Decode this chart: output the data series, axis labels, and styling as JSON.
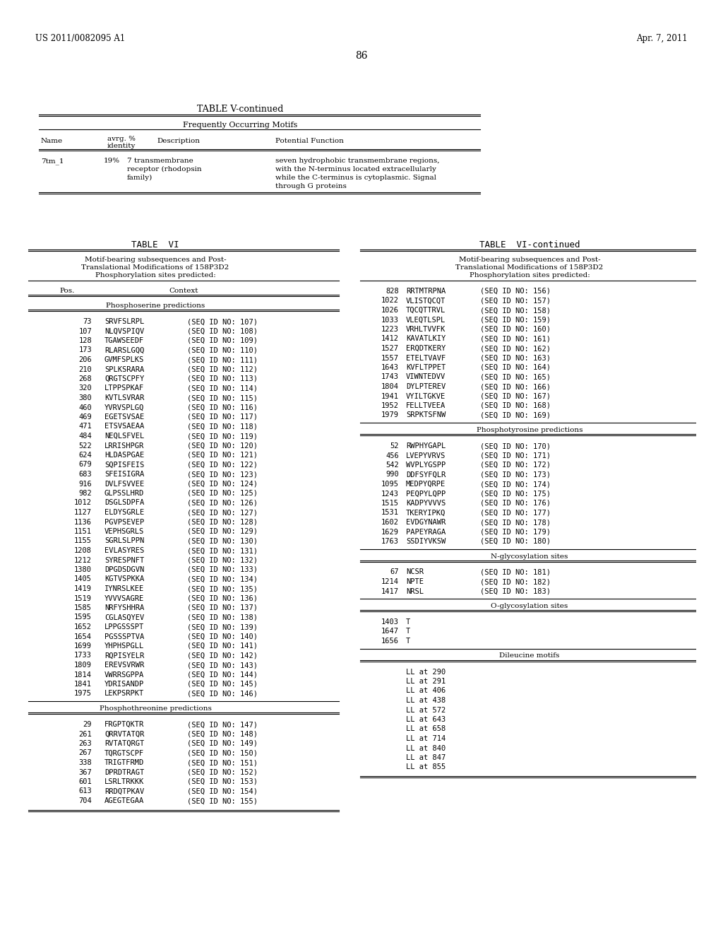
{
  "header_left": "US 2011/0082095 A1",
  "header_right": "Apr. 7, 2011",
  "page_number": "86",
  "table_v_title": "TABLE V-continued",
  "table_v_subtitle": "Frequently Occurring Motifs",
  "phosphoserine_label": "Phosphoserine predictions",
  "phosphoserine_data": [
    [
      73,
      "SRVFSLRPL",
      107
    ],
    [
      107,
      "NLQVSPIQV",
      108
    ],
    [
      128,
      "TGAWSEEDF",
      109
    ],
    [
      173,
      "RLARSLGQQ",
      110
    ],
    [
      206,
      "GVMFSPLKS",
      111
    ],
    [
      210,
      "SPLKSRARA",
      112
    ],
    [
      268,
      "QRGTSCPFY",
      113
    ],
    [
      320,
      "LTPPSPKAF",
      114
    ],
    [
      380,
      "KVTLSVRAR",
      115
    ],
    [
      460,
      "YVRVSPLGQ",
      116
    ],
    [
      469,
      "EGETSVSAE",
      117
    ],
    [
      471,
      "ETSVSAEAA",
      118
    ],
    [
      484,
      "NEQLSFVEL",
      119
    ],
    [
      522,
      "LRRISHPGR",
      120
    ],
    [
      624,
      "HLDASPGAE",
      121
    ],
    [
      679,
      "SQPISFEIS",
      122
    ],
    [
      683,
      "SFEISIGRA",
      123
    ],
    [
      916,
      "DVLFSVVEE",
      124
    ],
    [
      982,
      "GLPSSLHRD",
      125
    ],
    [
      1012,
      "DSGLSDPFA",
      126
    ],
    [
      1127,
      "ELDYSGRLE",
      127
    ],
    [
      1136,
      "PGVPSEVEP",
      128
    ],
    [
      1151,
      "VEPHSGRLS",
      129
    ],
    [
      1155,
      "SGRLSLPPN",
      130
    ],
    [
      1208,
      "EVLASYRES",
      131
    ],
    [
      1212,
      "SYRESPNFT",
      132
    ],
    [
      1380,
      "DPGDSDGVN",
      133
    ],
    [
      1405,
      "KGTVSPKKA",
      134
    ],
    [
      1419,
      "IYNRSLKEE",
      135
    ],
    [
      1519,
      "YVVVSAGRE",
      136
    ],
    [
      1585,
      "NRFYSHHRA",
      137
    ],
    [
      1595,
      "CGLASQYEV",
      138
    ],
    [
      1652,
      "LPPGSSSPT",
      139
    ],
    [
      1654,
      "PGSSSPTVA",
      140
    ],
    [
      1699,
      "YHPHSPGLL",
      141
    ],
    [
      1733,
      "RQPISYELR",
      142
    ],
    [
      1809,
      "EREVSVRWR",
      143
    ],
    [
      1814,
      "VWRRSGPPA",
      144
    ],
    [
      1841,
      "YDRISANDP",
      145
    ],
    [
      1975,
      "LEKPSRPKT",
      146
    ]
  ],
  "phosphothr_label": "Phosphothreonine predictions",
  "phosphothr_data": [
    [
      29,
      "FRGPTQKTR",
      147
    ],
    [
      261,
      "QRRVTATQR",
      148
    ],
    [
      263,
      "RVTATQRGT",
      149
    ],
    [
      267,
      "TQRGTSCPF",
      150
    ],
    [
      338,
      "TRIGTFRMD",
      151
    ],
    [
      367,
      "DPRDTRAGT",
      152
    ],
    [
      601,
      "LSRLTRKKK",
      153
    ],
    [
      613,
      "RRDQTPKAV",
      154
    ],
    [
      704,
      "AGEGTEGAA",
      155
    ]
  ],
  "right_phosphoserine_data": [
    [
      828,
      "RRTMTRPNA",
      156
    ],
    [
      1022,
      "VLISTQCQT",
      157
    ],
    [
      1026,
      "TQCQTTRVL",
      158
    ],
    [
      1033,
      "VLEQTLSPL",
      159
    ],
    [
      1223,
      "VRHLTVVFK",
      160
    ],
    [
      1412,
      "KAVATLKIY",
      161
    ],
    [
      1527,
      "ERQDTKERY",
      162
    ],
    [
      1557,
      "ETELTVAVF",
      163
    ],
    [
      1643,
      "KVFLTPPET",
      164
    ],
    [
      1743,
      "VIWNTEDVV",
      165
    ],
    [
      1804,
      "DYLPTEREV",
      166
    ],
    [
      1941,
      "VYILTGKVE",
      167
    ],
    [
      1952,
      "FELLTVEEA",
      168
    ],
    [
      1979,
      "SRPKTSFNW",
      169
    ]
  ],
  "phosphotyr_label": "Phosphotyrosine predictions",
  "phosphotyr_data": [
    [
      52,
      "RWPHYGAPL",
      170
    ],
    [
      456,
      "LVEPYVRVS",
      171
    ],
    [
      542,
      "WVPLYGSPP",
      172
    ],
    [
      990,
      "DDFSYFQLR",
      173
    ],
    [
      1095,
      "MEDPYQRPE",
      174
    ],
    [
      1243,
      "PEQPYLQPP",
      175
    ],
    [
      1515,
      "KADPYVVVS",
      176
    ],
    [
      1531,
      "TKERYIPKQ",
      177
    ],
    [
      1602,
      "EVDGYNAWR",
      178
    ],
    [
      1629,
      "PAPEYRAGA",
      179
    ],
    [
      1763,
      "SSDIYVKSW",
      180
    ]
  ],
  "nglyc_label": "N-glycosylation sites",
  "nglyc_data": [
    [
      67,
      "NCSR",
      181
    ],
    [
      1214,
      "NPTE",
      182
    ],
    [
      1417,
      "NRSL",
      183
    ]
  ],
  "oglyc_label": "O-glycosylation sites",
  "oglyc_data": [
    1403,
    1647,
    1656
  ],
  "dileucine_label": "Dileucine motifs",
  "dileucine_data": [
    "LL at 290",
    "LL at 291",
    "LL at 406",
    "LL at 438",
    "LL at 572",
    "LL at 643",
    "LL at 658",
    "LL at 714",
    "LL at 840",
    "LL at 847",
    "LL at 855"
  ],
  "bg_color": "#ffffff",
  "text_color": "#000000"
}
